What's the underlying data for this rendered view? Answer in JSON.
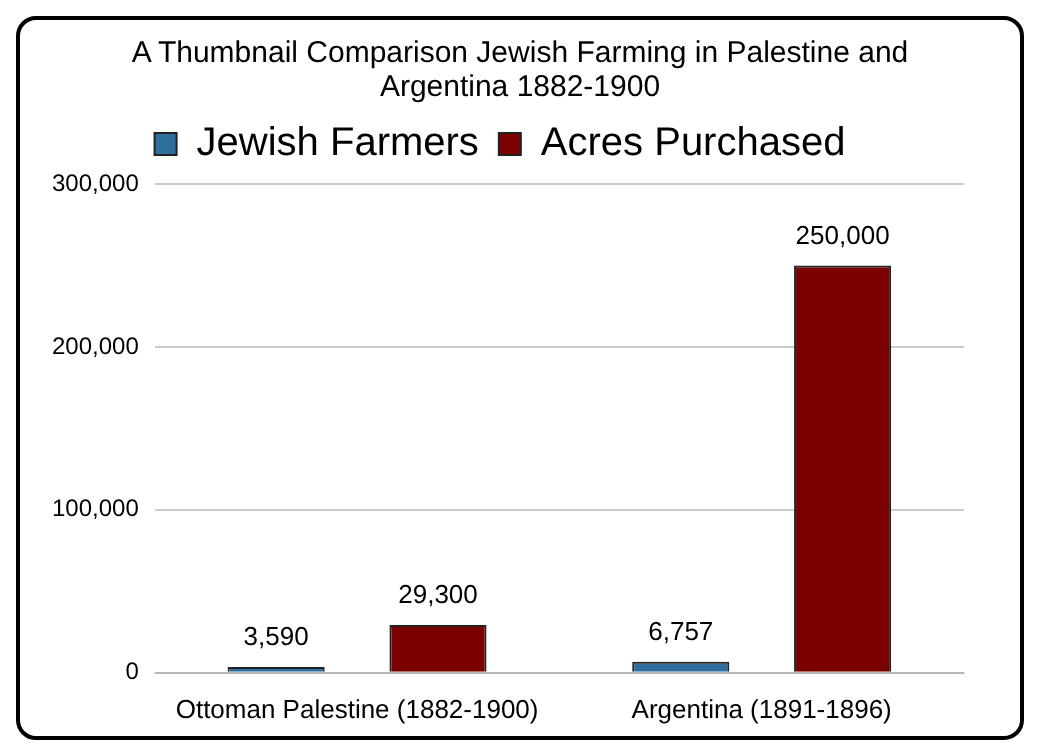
{
  "chart_data": {
    "type": "bar",
    "title": "A Thumbnail Comparison Jewish Farming in Palestine and Argentina 1882-1900",
    "categories": [
      "Ottoman Palestine (1882-1900)",
      "Argentina (1891-1896)"
    ],
    "series": [
      {
        "name": "Jewish Farmers",
        "color": "#2e6fa0",
        "values": [
          3590,
          6757
        ],
        "value_labels": [
          "3,590",
          "6,757"
        ]
      },
      {
        "name": "Acres Purchased",
        "color": "#7b0000",
        "values": [
          29300,
          250000
        ],
        "value_labels": [
          "29,300",
          "250,000"
        ]
      }
    ],
    "ylim": [
      0,
      300000
    ],
    "yticks": [
      {
        "value": 0,
        "label": "0"
      },
      {
        "value": 100000,
        "label": "100,000"
      },
      {
        "value": 200000,
        "label": "200,000"
      },
      {
        "value": 300000,
        "label": "300,000"
      }
    ],
    "grid": "y",
    "legend": "top"
  }
}
